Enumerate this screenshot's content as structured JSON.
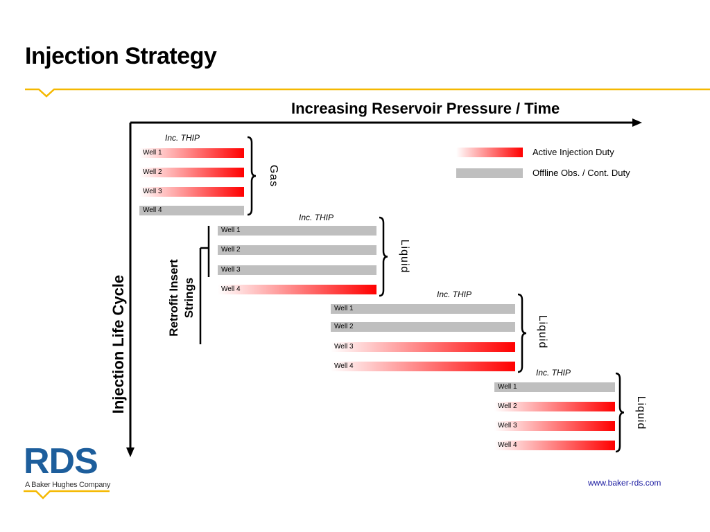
{
  "slide": {
    "title": "Injection Strategy",
    "x_axis_label": "Increasing Reservoir Pressure / Time",
    "y_axis_label": "Injection Life Cycle",
    "retrofit_label_line1": "Retrofit Insert",
    "retrofit_label_line2": "Strings",
    "footer_url": "www.baker-rds.com"
  },
  "legend": [
    {
      "label": "Active Injection Duty",
      "state": "active"
    },
    {
      "label": "Offline Obs. / Cont. Duty",
      "state": "offline"
    }
  ],
  "phases": [
    {
      "phase": "Gas",
      "note": "Inc. THIP",
      "wells": [
        {
          "label": "Well 1",
          "state": "active"
        },
        {
          "label": "Well 2",
          "state": "active"
        },
        {
          "label": "Well 3",
          "state": "active"
        },
        {
          "label": "Well 4",
          "state": "offline"
        }
      ]
    },
    {
      "phase": "Liquid",
      "note": "Inc. THIP",
      "wells": [
        {
          "label": "Well 1",
          "state": "offline"
        },
        {
          "label": "Well 2",
          "state": "offline"
        },
        {
          "label": "Well 3",
          "state": "offline"
        },
        {
          "label": "Well 4",
          "state": "active"
        }
      ]
    },
    {
      "phase": "Liquid",
      "note": "Inc. THIP",
      "wells": [
        {
          "label": "Well 1",
          "state": "offline"
        },
        {
          "label": "Well 2",
          "state": "offline"
        },
        {
          "label": "Well 3",
          "state": "active"
        },
        {
          "label": "Well 4",
          "state": "active"
        }
      ]
    },
    {
      "phase": "Liquid",
      "note": "Inc. THIP",
      "wells": [
        {
          "label": "Well 1",
          "state": "offline"
        },
        {
          "label": "Well 2",
          "state": "active"
        },
        {
          "label": "Well 3",
          "state": "active"
        },
        {
          "label": "Well 4",
          "state": "active"
        }
      ]
    }
  ],
  "logo": {
    "text": "RDS",
    "subtitle": "A Baker Hughes Company",
    "colors": {
      "brand_blue": "#1d5e9c",
      "accent_yellow": "#f5b800"
    }
  },
  "colors": {
    "active": "#ff0000",
    "offline": "#bfbfbf",
    "header_line": "#f5b800"
  }
}
